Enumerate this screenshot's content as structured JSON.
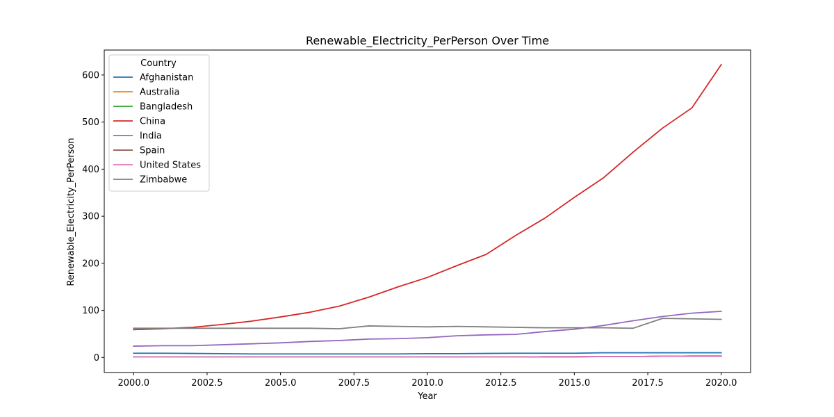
{
  "chart_data": {
    "type": "line",
    "title": "Renewable_Electricity_PerPerson Over Time",
    "xlabel": "Year",
    "ylabel": "Renewable_Electricity_PerPerson",
    "xlim": [
      1999,
      2021
    ],
    "ylim": [
      -32,
      653
    ],
    "xticks": [
      2000,
      2002.5,
      2005,
      2007.5,
      2010,
      2012.5,
      2015,
      2017.5,
      2020
    ],
    "xtick_labels": [
      "2000.0",
      "2002.5",
      "2005.0",
      "2007.5",
      "2010.0",
      "2012.5",
      "2015.0",
      "2017.5",
      "2020.0"
    ],
    "yticks": [
      0,
      100,
      200,
      300,
      400,
      500,
      600
    ],
    "ytick_labels": [
      "0",
      "100",
      "200",
      "300",
      "400",
      "500",
      "600"
    ],
    "grid": false,
    "legend": {
      "title": "Country",
      "placement": "top-left"
    },
    "x": [
      2000,
      2001,
      2002,
      2003,
      2004,
      2005,
      2006,
      2007,
      2008,
      2009,
      2010,
      2011,
      2012,
      2013,
      2014,
      2015,
      2016,
      2017,
      2018,
      2019,
      2020
    ],
    "series": [
      {
        "name": "Afghanistan",
        "color": "#1f77b4",
        "values": [
          9,
          9,
          8.5,
          8,
          7.5,
          7.5,
          7.5,
          7.5,
          7.5,
          7.5,
          8,
          8,
          8.5,
          9,
          9,
          9,
          10,
          10,
          10,
          10,
          10
        ]
      },
      {
        "name": "Australia",
        "color": "#ff7f0e",
        "values": [
          1,
          1,
          1,
          1,
          1,
          1,
          1,
          1,
          1,
          1,
          1,
          1,
          1,
          1,
          1.5,
          1.5,
          2,
          2,
          2.5,
          3,
          3
        ]
      },
      {
        "name": "Bangladesh",
        "color": "#2ca02c",
        "values": [
          1,
          1,
          1,
          1,
          1,
          1,
          1,
          1,
          1,
          1,
          1,
          1,
          1,
          1,
          1.5,
          1.5,
          2,
          2,
          2.5,
          3,
          3
        ]
      },
      {
        "name": "China",
        "color": "#d62728",
        "values": [
          59,
          61,
          64,
          70,
          77,
          86,
          96,
          109,
          128,
          150,
          170,
          195,
          219,
          259,
          296,
          340,
          382,
          436,
          487,
          530,
          622
        ]
      },
      {
        "name": "India",
        "color": "#9467bd",
        "values": [
          24,
          25,
          25,
          27,
          29,
          31,
          34,
          36,
          39,
          40,
          42,
          46,
          48,
          49,
          55,
          60,
          68,
          78,
          87,
          94,
          98
        ]
      },
      {
        "name": "Spain",
        "color": "#8c564b",
        "values": [
          1,
          1,
          1,
          1,
          1,
          1,
          1,
          1,
          1,
          1,
          1,
          1,
          1,
          1,
          1.5,
          1.5,
          2,
          2,
          2.5,
          3,
          3
        ]
      },
      {
        "name": "United States",
        "color": "#e377c2",
        "values": [
          1,
          1,
          1,
          1,
          1,
          1,
          1,
          1,
          1,
          1,
          1,
          1,
          1,
          1,
          1.5,
          1.5,
          2,
          2,
          2.5,
          3,
          3
        ]
      },
      {
        "name": "Zimbabwe",
        "color": "#7f7f7f",
        "values": [
          62,
          62,
          62,
          62,
          62,
          62,
          62,
          61,
          67,
          66,
          65,
          66,
          65,
          64,
          63,
          63,
          63,
          62,
          83,
          82,
          81
        ]
      }
    ]
  }
}
